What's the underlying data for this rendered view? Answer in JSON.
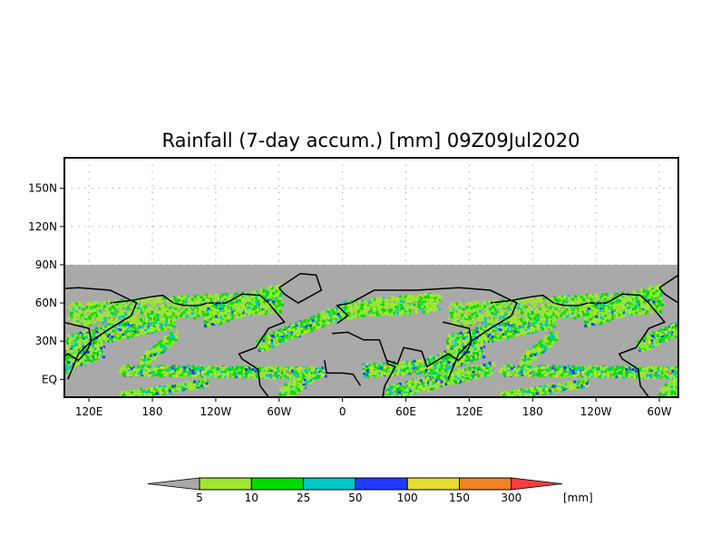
{
  "title": "Rainfall (7-day accum.) [mm] 09Z09Jul2020",
  "map": {
    "y_ticks": [
      "150N",
      "120N",
      "90N",
      "60N",
      "30N",
      "EQ"
    ],
    "y_tick_lat": [
      150,
      120,
      90,
      60,
      30,
      0
    ],
    "x_ticks": [
      "120E",
      "180",
      "120W",
      "60W",
      "0",
      "60E",
      "120E",
      "180",
      "120W",
      "60W"
    ],
    "x_tick_lon": [
      120,
      180,
      240,
      300,
      360,
      420,
      480,
      540,
      600,
      660
    ],
    "lon_range": [
      96.7,
      678
    ],
    "lat_range": [
      -14,
      174
    ],
    "data_lat_max": 90,
    "background_color": "#a9a9a9"
  },
  "legend": {
    "unit": "[mm]",
    "labels": [
      "5",
      "10",
      "25",
      "50",
      "100",
      "150",
      "300"
    ],
    "colors": [
      "#a9a9a9",
      "#a0e632",
      "#00dc00",
      "#00c8c8",
      "#1e3cff",
      "#e6dc32",
      "#f08228",
      "#fa3c3c"
    ]
  }
}
